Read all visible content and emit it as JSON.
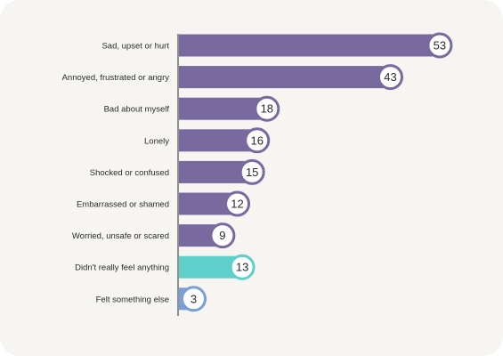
{
  "chart_data": {
    "type": "bar",
    "orientation": "horizontal",
    "categories": [
      "Sad, upset or hurt",
      "Annoyed, frustrated or angry",
      "Bad about myself",
      "Lonely",
      "Shocked or confused",
      "Embarrassed or shamed",
      "Worried, unsafe or scared",
      "Didn't really feel anything",
      "Felt something else"
    ],
    "values": [
      53,
      43,
      18,
      16,
      15,
      12,
      9,
      13,
      3
    ],
    "colors": [
      "#786a9f",
      "#786a9f",
      "#786a9f",
      "#786a9f",
      "#786a9f",
      "#786a9f",
      "#786a9f",
      "#5fcfcb",
      "#7a9ed6"
    ],
    "ring_colors": [
      "#786a9f",
      "#786a9f",
      "#786a9f",
      "#786a9f",
      "#786a9f",
      "#786a9f",
      "#786a9f",
      "#5fcfcb",
      "#7a9ed6"
    ],
    "xlim": [
      0,
      55
    ],
    "grid": false,
    "legend": "none",
    "data_labels": "circle-at-bar-end"
  }
}
